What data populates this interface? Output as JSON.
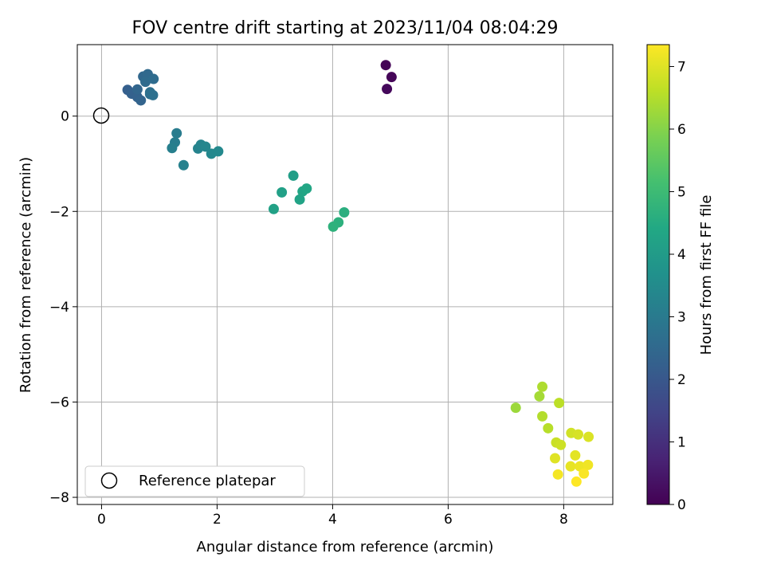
{
  "chart_data": {
    "type": "scatter",
    "title": "FOV centre drift starting at 2023/11/04 08:04:29",
    "xlabel": "Angular distance from reference (arcmin)",
    "ylabel": "Rotation from reference (arcmin)",
    "xlim": [
      -0.42,
      8.85
    ],
    "ylim": [
      -8.15,
      1.5
    ],
    "xticks": [
      0,
      2,
      4,
      6,
      8
    ],
    "xtick_labels": [
      "0",
      "2",
      "4",
      "6",
      "8"
    ],
    "yticks": [
      0,
      -2,
      -4,
      -6,
      -8
    ],
    "ytick_labels": [
      "0",
      "−2",
      "−4",
      "−6",
      "−8"
    ],
    "grid": true,
    "legend": {
      "placement": "lower-left",
      "entries": [
        "Reference platepar"
      ]
    },
    "reference_point": {
      "x": 0,
      "y": 0,
      "label": "Reference platepar"
    },
    "colorbar": {
      "label": "Hours from first FF file",
      "colormap": "viridis",
      "range": [
        0,
        7.35
      ],
      "ticks": [
        0,
        1,
        2,
        3,
        4,
        5,
        6,
        7
      ],
      "tick_labels": [
        "0",
        "1",
        "2",
        "3",
        "4",
        "5",
        "6",
        "7"
      ]
    },
    "points": [
      {
        "x": 4.92,
        "y": 1.07,
        "c": 0.05
      },
      {
        "x": 5.02,
        "y": 0.82,
        "c": 0.1
      },
      {
        "x": 4.94,
        "y": 0.57,
        "c": 0.15
      },
      {
        "x": 0.45,
        "y": 0.55,
        "c": 2.2
      },
      {
        "x": 0.52,
        "y": 0.47,
        "c": 2.25
      },
      {
        "x": 0.62,
        "y": 0.4,
        "c": 2.3
      },
      {
        "x": 0.68,
        "y": 0.33,
        "c": 2.35
      },
      {
        "x": 0.62,
        "y": 0.56,
        "c": 2.4
      },
      {
        "x": 0.72,
        "y": 0.83,
        "c": 2.45
      },
      {
        "x": 0.8,
        "y": 0.88,
        "c": 2.5
      },
      {
        "x": 0.76,
        "y": 0.72,
        "c": 2.55
      },
      {
        "x": 0.9,
        "y": 0.78,
        "c": 2.6
      },
      {
        "x": 0.84,
        "y": 0.46,
        "c": 2.65
      },
      {
        "x": 0.89,
        "y": 0.44,
        "c": 2.7
      },
      {
        "x": 0.84,
        "y": 0.5,
        "c": 2.7
      },
      {
        "x": 1.3,
        "y": -0.36,
        "c": 3.05
      },
      {
        "x": 1.27,
        "y": -0.55,
        "c": 3.1
      },
      {
        "x": 1.22,
        "y": -0.67,
        "c": 3.15
      },
      {
        "x": 1.42,
        "y": -1.03,
        "c": 3.2
      },
      {
        "x": 1.67,
        "y": -0.68,
        "c": 3.25
      },
      {
        "x": 1.72,
        "y": -0.6,
        "c": 3.3
      },
      {
        "x": 1.8,
        "y": -0.64,
        "c": 3.35
      },
      {
        "x": 1.9,
        "y": -0.79,
        "c": 3.4
      },
      {
        "x": 2.02,
        "y": -0.74,
        "c": 3.45
      },
      {
        "x": 3.32,
        "y": -1.25,
        "c": 4.1
      },
      {
        "x": 3.12,
        "y": -1.6,
        "c": 4.15
      },
      {
        "x": 2.98,
        "y": -1.95,
        "c": 4.2
      },
      {
        "x": 3.43,
        "y": -1.75,
        "c": 4.25
      },
      {
        "x": 3.48,
        "y": -1.58,
        "c": 4.3
      },
      {
        "x": 3.55,
        "y": -1.52,
        "c": 4.35
      },
      {
        "x": 4.2,
        "y": -2.02,
        "c": 4.6
      },
      {
        "x": 4.1,
        "y": -2.23,
        "c": 4.65
      },
      {
        "x": 4.01,
        "y": -2.32,
        "c": 4.7
      },
      {
        "x": 7.17,
        "y": -6.12,
        "c": 6.25
      },
      {
        "x": 7.58,
        "y": -5.88,
        "c": 6.35
      },
      {
        "x": 7.63,
        "y": -5.68,
        "c": 6.45
      },
      {
        "x": 7.63,
        "y": -6.3,
        "c": 6.5
      },
      {
        "x": 7.73,
        "y": -6.55,
        "c": 6.55
      },
      {
        "x": 7.92,
        "y": -6.02,
        "c": 6.6
      },
      {
        "x": 7.87,
        "y": -6.85,
        "c": 6.75
      },
      {
        "x": 7.95,
        "y": -6.9,
        "c": 6.8
      },
      {
        "x": 8.13,
        "y": -6.65,
        "c": 6.85
      },
      {
        "x": 8.25,
        "y": -6.68,
        "c": 6.9
      },
      {
        "x": 8.43,
        "y": -6.73,
        "c": 6.95
      },
      {
        "x": 7.85,
        "y": -7.18,
        "c": 7.0
      },
      {
        "x": 8.2,
        "y": -7.12,
        "c": 7.05
      },
      {
        "x": 8.12,
        "y": -7.35,
        "c": 7.1
      },
      {
        "x": 8.28,
        "y": -7.35,
        "c": 7.15
      },
      {
        "x": 8.42,
        "y": -7.32,
        "c": 7.2
      },
      {
        "x": 7.9,
        "y": -7.52,
        "c": 7.25
      },
      {
        "x": 8.35,
        "y": -7.5,
        "c": 7.3
      },
      {
        "x": 8.22,
        "y": -7.67,
        "c": 7.35
      }
    ]
  }
}
